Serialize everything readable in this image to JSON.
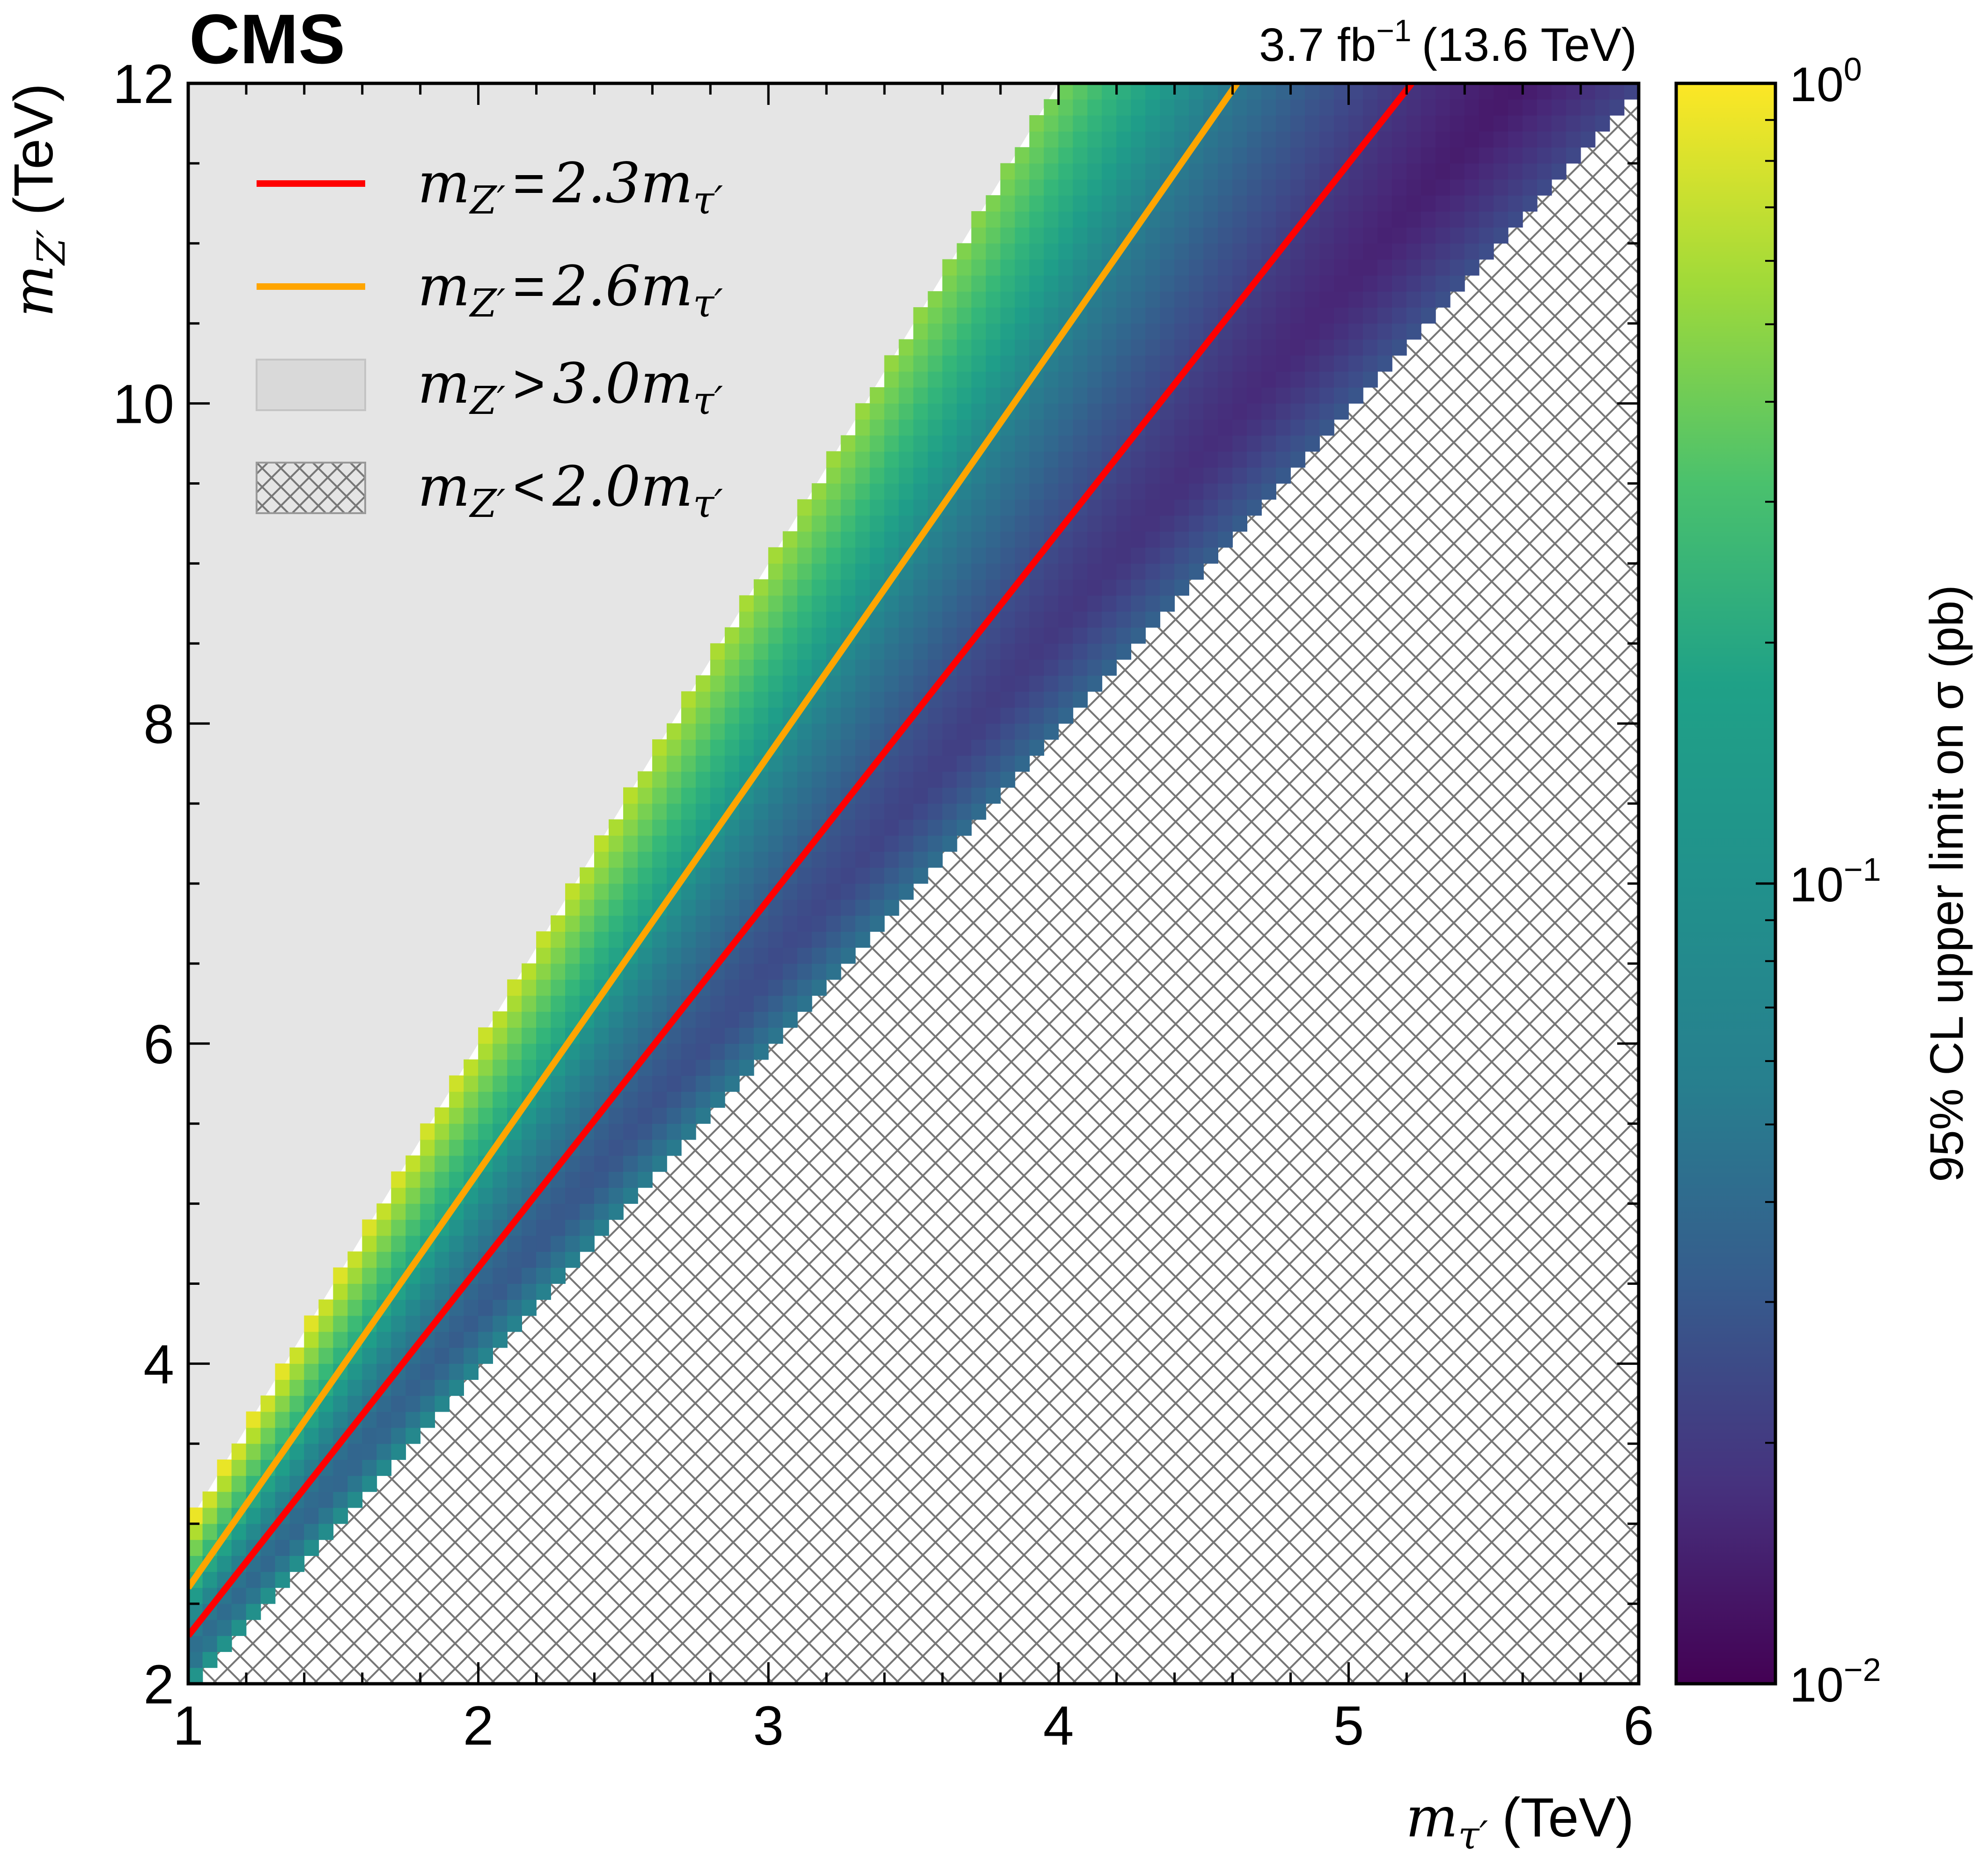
{
  "chart_data": {
    "type": "heatmap",
    "title": "CMS",
    "lumi_label": "3.7 fb",
    "lumi_exponent": "−1",
    "energy_label": "(13.6 TeV)",
    "x_axis": {
      "var": "m",
      "sub": "τ′",
      "unit": "(TeV)",
      "range": [
        1,
        6
      ],
      "major_ticks": [
        1,
        2,
        3,
        4,
        5,
        6
      ],
      "tick_labels": [
        "1",
        "2",
        "3",
        "4",
        "5",
        "6"
      ],
      "minor_step": 0.2
    },
    "y_axis": {
      "var": "m",
      "sub": "Z′",
      "unit": "(TeV)",
      "range": [
        2,
        12
      ],
      "major_ticks": [
        2,
        4,
        6,
        8,
        10,
        12
      ],
      "tick_labels": [
        "2",
        "4",
        "6",
        "8",
        "10",
        "12"
      ],
      "minor_step": 0.5
    },
    "colorbar": {
      "label": "95% CL upper limit on σ (pb)",
      "scale": "log",
      "range": [
        0.01,
        1.0
      ],
      "colormap": "viridis",
      "tick_labels": [
        {
          "value": 1.0,
          "base": "10",
          "exp": "0"
        },
        {
          "value": 0.1,
          "base": "10",
          "exp": "−1"
        },
        {
          "value": 0.01,
          "base": "10",
          "exp": "−2"
        }
      ]
    },
    "grid": {
      "mtau_start": 1.0,
      "mtau_step": 0.05,
      "mtau_bins": 100,
      "mz_start": 2.0,
      "mz_step": 0.1,
      "mz_bins": 100
    },
    "regions": {
      "excluded_above_ratio": 3.0,
      "excluded_below_ratio": 2.0,
      "excluded_above_color": "#e5e5e5",
      "excluded_below_pattern_color": "#777777"
    },
    "limit_model": {
      "min_ratio": 2.15,
      "min_limit_low_mass": 0.05,
      "min_limit_high_mass": 0.012,
      "edge_limit_low_mass": 1.0,
      "edge_limit_high_mass": 0.22
    },
    "legend": [
      {
        "kind": "line",
        "color": "#ff0000",
        "lhs": "m",
        "sub": "Z′",
        "op": "=",
        "rhs": "2.3m",
        "rhs_sub": "τ′",
        "ratio": 2.3
      },
      {
        "kind": "line",
        "color": "#ffa500",
        "lhs": "m",
        "sub": "Z′",
        "op": "=",
        "rhs": "2.6m",
        "rhs_sub": "τ′",
        "ratio": 2.6
      },
      {
        "kind": "fill",
        "color": "#d9d9d9",
        "lhs": "m",
        "sub": "Z′",
        "op": ">",
        "rhs": "3.0m",
        "rhs_sub": "τ′"
      },
      {
        "kind": "hatch",
        "color": "#777777",
        "lhs": "m",
        "sub": "Z′",
        "op": "<",
        "rhs": "2.0m",
        "rhs_sub": "τ′"
      }
    ]
  }
}
